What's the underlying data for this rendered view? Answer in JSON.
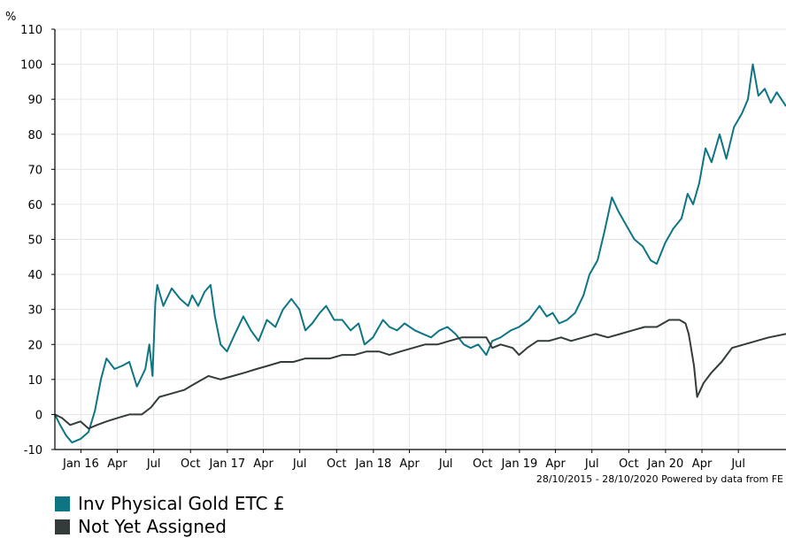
{
  "chart_data": {
    "type": "line",
    "y_unit_label": "%",
    "date_range_note": "28/10/2015 - 28/10/2020 Powered by data from FE",
    "ylim": [
      -10,
      110
    ],
    "y_ticks": [
      -10,
      0,
      10,
      20,
      30,
      40,
      50,
      60,
      70,
      80,
      90,
      100,
      110
    ],
    "xlim": [
      "2015-10-28",
      "2020-10-28"
    ],
    "x_ticks": [
      {
        "label": "Jan 16",
        "date": "2016-01-01"
      },
      {
        "label": "Apr",
        "date": "2016-04-01"
      },
      {
        "label": "Jul",
        "date": "2016-07-01"
      },
      {
        "label": "Oct",
        "date": "2016-10-01"
      },
      {
        "label": "Jan 17",
        "date": "2017-01-01"
      },
      {
        "label": "Apr",
        "date": "2017-04-01"
      },
      {
        "label": "Jul",
        "date": "2017-07-01"
      },
      {
        "label": "Oct",
        "date": "2017-10-01"
      },
      {
        "label": "Jan 18",
        "date": "2018-01-01"
      },
      {
        "label": "Apr",
        "date": "2018-04-01"
      },
      {
        "label": "Jul",
        "date": "2018-07-01"
      },
      {
        "label": "Oct",
        "date": "2018-10-01"
      },
      {
        "label": "Jan 19",
        "date": "2019-01-01"
      },
      {
        "label": "Apr",
        "date": "2019-04-01"
      },
      {
        "label": "Jul",
        "date": "2019-07-01"
      },
      {
        "label": "Oct",
        "date": "2019-10-01"
      },
      {
        "label": "Jan 20",
        "date": "2020-01-01"
      },
      {
        "label": "Apr",
        "date": "2020-04-01"
      },
      {
        "label": "Jul",
        "date": "2020-07-01"
      }
    ],
    "grid": true,
    "legend_position": "bottom-left",
    "series": [
      {
        "name": "Inv Physical Gold ETC £",
        "color": "#0e7585",
        "points": [
          [
            "2015-10-28",
            0
          ],
          [
            "2015-11-10",
            -3
          ],
          [
            "2015-11-25",
            -6
          ],
          [
            "2015-12-10",
            -8
          ],
          [
            "2015-12-31",
            -7
          ],
          [
            "2016-01-20",
            -5
          ],
          [
            "2016-02-05",
            1
          ],
          [
            "2016-02-20",
            10
          ],
          [
            "2016-03-05",
            16
          ],
          [
            "2016-03-25",
            13
          ],
          [
            "2016-04-15",
            14
          ],
          [
            "2016-05-01",
            15
          ],
          [
            "2016-05-20",
            8
          ],
          [
            "2016-06-10",
            13
          ],
          [
            "2016-06-20",
            20
          ],
          [
            "2016-06-28",
            11
          ],
          [
            "2016-07-05",
            32
          ],
          [
            "2016-07-10",
            37
          ],
          [
            "2016-07-25",
            31
          ],
          [
            "2016-08-15",
            36
          ],
          [
            "2016-09-05",
            33
          ],
          [
            "2016-09-25",
            31
          ],
          [
            "2016-10-05",
            34
          ],
          [
            "2016-10-20",
            31
          ],
          [
            "2016-11-05",
            35
          ],
          [
            "2016-11-20",
            37
          ],
          [
            "2016-12-01",
            28
          ],
          [
            "2016-12-15",
            20
          ],
          [
            "2016-12-31",
            18
          ],
          [
            "2017-01-20",
            23
          ],
          [
            "2017-02-10",
            28
          ],
          [
            "2017-03-01",
            24
          ],
          [
            "2017-03-20",
            21
          ],
          [
            "2017-04-10",
            27
          ],
          [
            "2017-05-01",
            25
          ],
          [
            "2017-05-20",
            30
          ],
          [
            "2017-06-10",
            33
          ],
          [
            "2017-06-30",
            30
          ],
          [
            "2017-07-15",
            24
          ],
          [
            "2017-08-01",
            26
          ],
          [
            "2017-08-20",
            29
          ],
          [
            "2017-09-05",
            31
          ],
          [
            "2017-09-25",
            27
          ],
          [
            "2017-10-15",
            27
          ],
          [
            "2017-11-05",
            24
          ],
          [
            "2017-11-25",
            26
          ],
          [
            "2017-12-10",
            20
          ],
          [
            "2017-12-31",
            22
          ],
          [
            "2018-01-25",
            27
          ],
          [
            "2018-02-10",
            25
          ],
          [
            "2018-03-01",
            24
          ],
          [
            "2018-03-20",
            26
          ],
          [
            "2018-04-15",
            24
          ],
          [
            "2018-05-05",
            23
          ],
          [
            "2018-05-25",
            22
          ],
          [
            "2018-06-15",
            24
          ],
          [
            "2018-07-05",
            25
          ],
          [
            "2018-07-25",
            23
          ],
          [
            "2018-08-15",
            20
          ],
          [
            "2018-09-01",
            19
          ],
          [
            "2018-09-20",
            20
          ],
          [
            "2018-10-10",
            17
          ],
          [
            "2018-10-25",
            21
          ],
          [
            "2018-11-15",
            22
          ],
          [
            "2018-12-10",
            24
          ],
          [
            "2018-12-31",
            25
          ],
          [
            "2019-01-25",
            27
          ],
          [
            "2019-02-20",
            31
          ],
          [
            "2019-03-10",
            28
          ],
          [
            "2019-03-25",
            29
          ],
          [
            "2019-04-10",
            26
          ],
          [
            "2019-04-30",
            27
          ],
          [
            "2019-05-20",
            29
          ],
          [
            "2019-06-10",
            34
          ],
          [
            "2019-06-25",
            40
          ],
          [
            "2019-07-15",
            44
          ],
          [
            "2019-08-01",
            52
          ],
          [
            "2019-08-20",
            62
          ],
          [
            "2019-09-05",
            58
          ],
          [
            "2019-09-25",
            54
          ],
          [
            "2019-10-15",
            50
          ],
          [
            "2019-11-05",
            48
          ],
          [
            "2019-11-25",
            44
          ],
          [
            "2019-12-10",
            43
          ],
          [
            "2019-12-31",
            49
          ],
          [
            "2020-01-20",
            53
          ],
          [
            "2020-02-10",
            56
          ],
          [
            "2020-02-25",
            63
          ],
          [
            "2020-03-10",
            60
          ],
          [
            "2020-03-25",
            66
          ],
          [
            "2020-04-10",
            76
          ],
          [
            "2020-04-25",
            72
          ],
          [
            "2020-05-15",
            80
          ],
          [
            "2020-06-01",
            73
          ],
          [
            "2020-06-20",
            82
          ],
          [
            "2020-07-10",
            86
          ],
          [
            "2020-07-25",
            90
          ],
          [
            "2020-08-06",
            100
          ],
          [
            "2020-08-20",
            91
          ],
          [
            "2020-09-05",
            93
          ],
          [
            "2020-09-20",
            89
          ],
          [
            "2020-10-05",
            92
          ],
          [
            "2020-10-28",
            88
          ]
        ]
      },
      {
        "name": "Not Yet Assigned",
        "color": "#333c3a",
        "points": [
          [
            "2015-10-28",
            0
          ],
          [
            "2015-11-15",
            -1
          ],
          [
            "2015-12-05",
            -3
          ],
          [
            "2015-12-31",
            -2
          ],
          [
            "2016-01-20",
            -4
          ],
          [
            "2016-02-10",
            -3
          ],
          [
            "2016-03-05",
            -2
          ],
          [
            "2016-04-01",
            -1
          ],
          [
            "2016-05-01",
            0
          ],
          [
            "2016-06-01",
            0
          ],
          [
            "2016-06-24",
            2
          ],
          [
            "2016-07-15",
            5
          ],
          [
            "2016-08-15",
            6
          ],
          [
            "2016-09-15",
            7
          ],
          [
            "2016-10-15",
            9
          ],
          [
            "2016-11-15",
            11
          ],
          [
            "2016-12-15",
            10
          ],
          [
            "2017-01-15",
            11
          ],
          [
            "2017-02-15",
            12
          ],
          [
            "2017-03-15",
            13
          ],
          [
            "2017-04-15",
            14
          ],
          [
            "2017-05-15",
            15
          ],
          [
            "2017-06-15",
            15
          ],
          [
            "2017-07-15",
            16
          ],
          [
            "2017-08-15",
            16
          ],
          [
            "2017-09-15",
            16
          ],
          [
            "2017-10-15",
            17
          ],
          [
            "2017-11-15",
            17
          ],
          [
            "2017-12-15",
            18
          ],
          [
            "2018-01-15",
            18
          ],
          [
            "2018-02-10",
            17
          ],
          [
            "2018-03-10",
            18
          ],
          [
            "2018-04-10",
            19
          ],
          [
            "2018-05-10",
            20
          ],
          [
            "2018-06-10",
            20
          ],
          [
            "2018-07-10",
            21
          ],
          [
            "2018-08-10",
            22
          ],
          [
            "2018-09-10",
            22
          ],
          [
            "2018-10-10",
            22
          ],
          [
            "2018-10-25",
            19
          ],
          [
            "2018-11-15",
            20
          ],
          [
            "2018-12-15",
            19
          ],
          [
            "2018-12-31",
            17
          ],
          [
            "2019-01-20",
            19
          ],
          [
            "2019-02-15",
            21
          ],
          [
            "2019-03-15",
            21
          ],
          [
            "2019-04-15",
            22
          ],
          [
            "2019-05-10",
            21
          ],
          [
            "2019-06-10",
            22
          ],
          [
            "2019-07-10",
            23
          ],
          [
            "2019-08-10",
            22
          ],
          [
            "2019-09-10",
            23
          ],
          [
            "2019-10-10",
            24
          ],
          [
            "2019-11-10",
            25
          ],
          [
            "2019-12-10",
            25
          ],
          [
            "2020-01-10",
            27
          ],
          [
            "2020-02-05",
            27
          ],
          [
            "2020-02-20",
            26
          ],
          [
            "2020-02-28",
            23
          ],
          [
            "2020-03-12",
            14
          ],
          [
            "2020-03-20",
            5
          ],
          [
            "2020-04-05",
            9
          ],
          [
            "2020-04-25",
            12
          ],
          [
            "2020-05-20",
            15
          ],
          [
            "2020-06-15",
            19
          ],
          [
            "2020-07-15",
            20
          ],
          [
            "2020-08-15",
            21
          ],
          [
            "2020-09-15",
            22
          ],
          [
            "2020-10-28",
            23
          ]
        ]
      }
    ]
  }
}
